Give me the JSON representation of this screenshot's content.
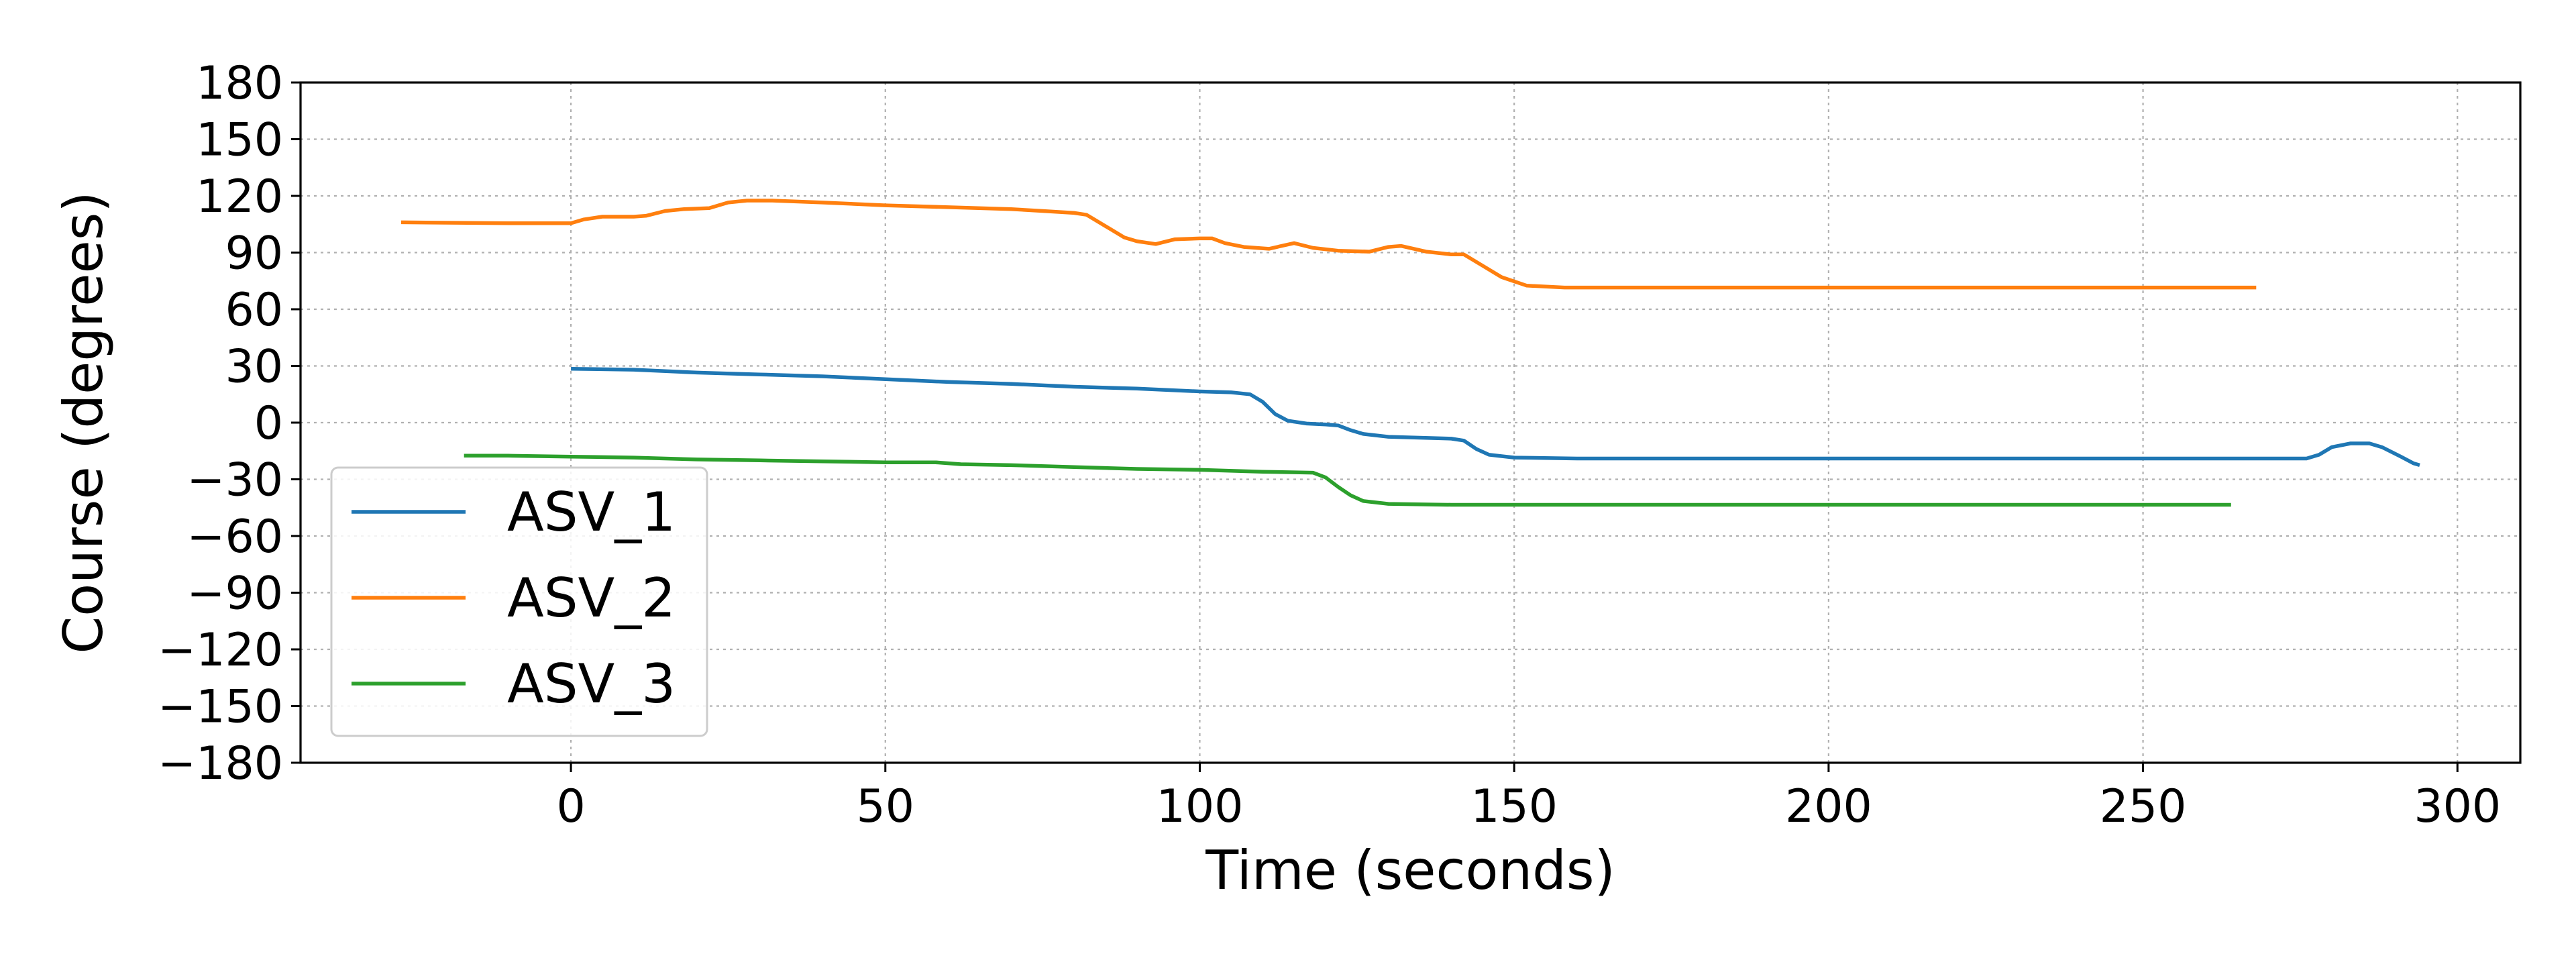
{
  "chart_data": {
    "type": "line",
    "title": "",
    "xlabel": "Time (seconds)",
    "ylabel": "Course (degrees)",
    "xlim": [
      -43,
      310
    ],
    "ylim": [
      -180,
      180
    ],
    "xticks": [
      0,
      50,
      100,
      150,
      200,
      250,
      300
    ],
    "yticks": [
      180,
      150,
      120,
      90,
      60,
      30,
      0,
      -30,
      -60,
      -90,
      -120,
      -150,
      -180
    ],
    "xtick_labels": [
      "0",
      "50",
      "100",
      "150",
      "200",
      "250",
      "300"
    ],
    "ytick_labels": [
      "180",
      "150",
      "120",
      "90",
      "60",
      "30",
      "0",
      "−30",
      "−60",
      "−90",
      "−120",
      "−150",
      "−180"
    ],
    "grid": true,
    "legend_position": "lower-left",
    "series": [
      {
        "name": "ASV_1",
        "color": "#1f77b4",
        "points": [
          [
            0,
            28.5
          ],
          [
            10,
            28
          ],
          [
            20,
            26.5
          ],
          [
            30,
            25.5
          ],
          [
            40,
            24.5
          ],
          [
            50,
            23
          ],
          [
            60,
            21.5
          ],
          [
            70,
            20.5
          ],
          [
            80,
            19
          ],
          [
            90,
            18
          ],
          [
            100,
            16.5
          ],
          [
            105,
            16
          ],
          [
            108,
            15
          ],
          [
            110,
            11
          ],
          [
            112,
            4.5
          ],
          [
            114,
            1
          ],
          [
            117,
            -0.5
          ],
          [
            120,
            -1
          ],
          [
            122,
            -1.5
          ],
          [
            124,
            -4
          ],
          [
            126,
            -6
          ],
          [
            130,
            -7.5
          ],
          [
            135,
            -8
          ],
          [
            140,
            -8.5
          ],
          [
            142,
            -9.5
          ],
          [
            144,
            -14
          ],
          [
            146,
            -17
          ],
          [
            150,
            -18.5
          ],
          [
            160,
            -19
          ],
          [
            200,
            -19
          ],
          [
            250,
            -19
          ],
          [
            276,
            -19
          ],
          [
            278,
            -17
          ],
          [
            280,
            -13
          ],
          [
            283,
            -11
          ],
          [
            286,
            -11
          ],
          [
            288,
            -13
          ],
          [
            291,
            -18
          ],
          [
            293,
            -21.5
          ],
          [
            294,
            -22.5
          ]
        ]
      },
      {
        "name": "ASV_2",
        "color": "#ff7f0e",
        "points": [
          [
            -27,
            106
          ],
          [
            -10,
            105.5
          ],
          [
            0,
            105.5
          ],
          [
            2,
            107.5
          ],
          [
            5,
            109
          ],
          [
            10,
            109
          ],
          [
            12,
            109.5
          ],
          [
            15,
            112
          ],
          [
            18,
            113
          ],
          [
            22,
            113.5
          ],
          [
            25,
            116.5
          ],
          [
            28,
            117.5
          ],
          [
            32,
            117.5
          ],
          [
            40,
            116.5
          ],
          [
            50,
            115
          ],
          [
            60,
            114
          ],
          [
            70,
            113
          ],
          [
            75,
            112
          ],
          [
            80,
            111
          ],
          [
            82,
            110
          ],
          [
            85,
            104
          ],
          [
            88,
            98
          ],
          [
            90,
            96
          ],
          [
            93,
            94.5
          ],
          [
            96,
            97
          ],
          [
            100,
            97.5
          ],
          [
            102,
            97.5
          ],
          [
            104,
            95
          ],
          [
            107,
            93
          ],
          [
            111,
            92
          ],
          [
            115,
            95
          ],
          [
            118,
            92.5
          ],
          [
            122,
            91
          ],
          [
            127,
            90.5
          ],
          [
            130,
            93
          ],
          [
            132,
            93.5
          ],
          [
            136,
            90.5
          ],
          [
            140,
            89
          ],
          [
            142,
            89
          ],
          [
            145,
            83
          ],
          [
            148,
            77
          ],
          [
            152,
            72.5
          ],
          [
            158,
            71.5
          ],
          [
            200,
            71.5
          ],
          [
            250,
            71.5
          ],
          [
            268,
            71.5
          ]
        ]
      },
      {
        "name": "ASV_3",
        "color": "#2ca02c",
        "points": [
          [
            -17,
            -17.5
          ],
          [
            -10,
            -17.5
          ],
          [
            0,
            -18
          ],
          [
            10,
            -18.5
          ],
          [
            20,
            -19.5
          ],
          [
            30,
            -20
          ],
          [
            40,
            -20.5
          ],
          [
            50,
            -21
          ],
          [
            58,
            -21
          ],
          [
            62,
            -22
          ],
          [
            70,
            -22.5
          ],
          [
            80,
            -23.5
          ],
          [
            90,
            -24.5
          ],
          [
            100,
            -25
          ],
          [
            110,
            -26
          ],
          [
            118,
            -26.5
          ],
          [
            120,
            -29
          ],
          [
            122,
            -34
          ],
          [
            124,
            -38.5
          ],
          [
            126,
            -41.5
          ],
          [
            130,
            -43
          ],
          [
            140,
            -43.5
          ],
          [
            180,
            -43.5
          ],
          [
            230,
            -43.5
          ],
          [
            264,
            -43.5
          ]
        ]
      }
    ]
  }
}
